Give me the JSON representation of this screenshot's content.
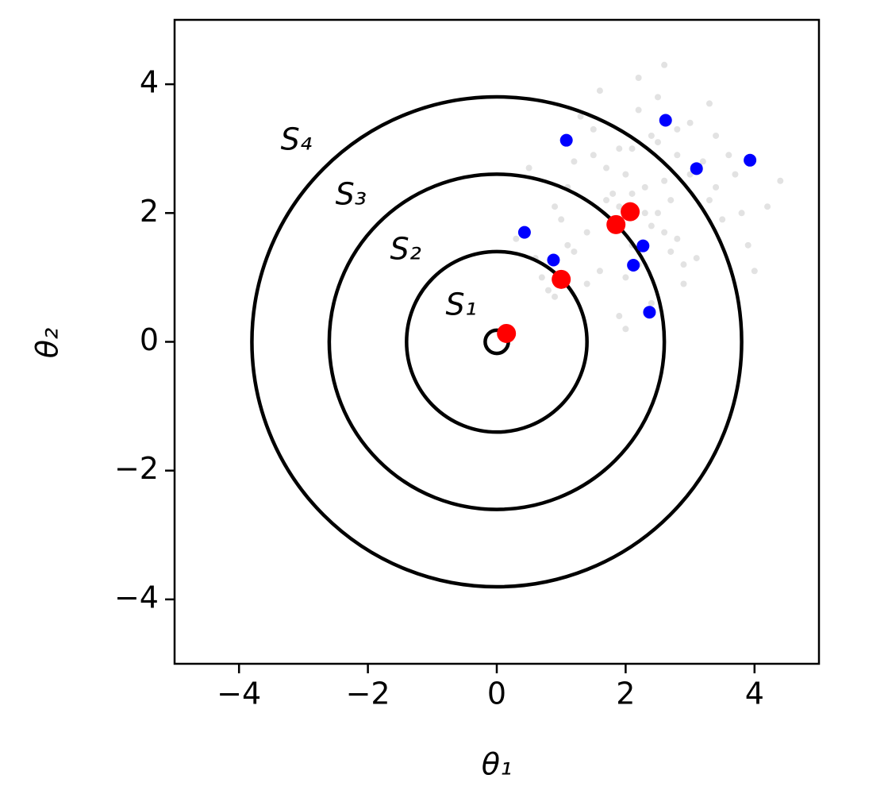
{
  "chart_data": {
    "type": "scatter",
    "xlabel": "θ₁",
    "ylabel": "θ₂",
    "xlim": [
      -5,
      5
    ],
    "ylim": [
      -5,
      5
    ],
    "xticks": [
      {
        "value": -4,
        "label": "−4"
      },
      {
        "value": -2,
        "label": "−2"
      },
      0,
      2,
      4
    ],
    "yticks": [
      {
        "value": -4,
        "label": "−4"
      },
      {
        "value": -2,
        "label": "−2"
      },
      0,
      2,
      4
    ],
    "circles": {
      "center": [
        0,
        0
      ],
      "radii": [
        0.18,
        1.4,
        2.6,
        3.8
      ],
      "labels": [
        "S₁",
        "S₂",
        "S₃",
        "S₄"
      ],
      "color": "#000000"
    },
    "series": [
      {
        "color": "#9e9e9e",
        "x": [
          2.1,
          1.5,
          2.8,
          3.3,
          1.2,
          2.5,
          2.0,
          3.7,
          0.9,
          1.8,
          2.6,
          3.0,
          1.4,
          2.3,
          2.9,
          1.7,
          3.5,
          0.6,
          2.2,
          2.7,
          1.1,
          3.9,
          2.4,
          1.9,
          3.2,
          0.8,
          2.0,
          2.6,
          1.6,
          3.4,
          2.8,
          1.3,
          2.1,
          4.2,
          0.5,
          1.9,
          2.5,
          3.1,
          1.0,
          2.3,
          3.6,
          1.7,
          2.9,
          0.3,
          2.2,
          3.8,
          1.5,
          2.7,
          2.0,
          4.4,
          1.2,
          2.4,
          3.3,
          0.7,
          1.8,
          2.6,
          3.0,
          1.4,
          2.1,
          4.0,
          2.5,
          1.6,
          3.4,
          0.9,
          2.8,
          2.2,
          1.1,
          3.1,
          1.9,
          2.4
        ],
        "values": [
          2.3,
          2.9,
          1.6,
          2.2,
          1.4,
          3.1,
          1.0,
          2.6,
          2.1,
          1.8,
          2.5,
          3.4,
          0.9,
          2.0,
          1.2,
          2.7,
          1.9,
          1.3,
          3.6,
          2.2,
          2.4,
          1.5,
          0.6,
          3.0,
          2.8,
          0.8,
          2.6,
          1.7,
          1.1,
          3.2,
          2.9,
          3.5,
          1.5,
          2.1,
          2.7,
          0.4,
          3.8,
          1.3,
          1.9,
          2.4,
          2.9,
          2.2,
          0.9,
          1.6,
          4.1,
          2.0,
          3.3,
          1.4,
          0.2,
          2.5,
          2.8,
          1.8,
          3.7,
          1.0,
          2.3,
          4.3,
          2.6,
          1.7,
          3.0,
          1.1,
          2.0,
          3.9,
          2.4,
          0.7,
          3.3,
          1.2,
          1.5,
          2.7,
          2.1,
          3.2
        ]
      },
      {
        "color": "#0000ff",
        "x": [
          1.08,
          2.62,
          3.1,
          3.93,
          0.43,
          0.88,
          2.27,
          2.12,
          2.37
        ],
        "values": [
          3.13,
          3.44,
          2.69,
          2.82,
          1.7,
          1.27,
          1.49,
          1.19,
          0.46
        ]
      },
      {
        "color": "#ff0000",
        "x": [
          0.15,
          1.0,
          1.85,
          2.07
        ],
        "values": [
          0.13,
          0.97,
          1.82,
          2.02
        ]
      }
    ]
  }
}
